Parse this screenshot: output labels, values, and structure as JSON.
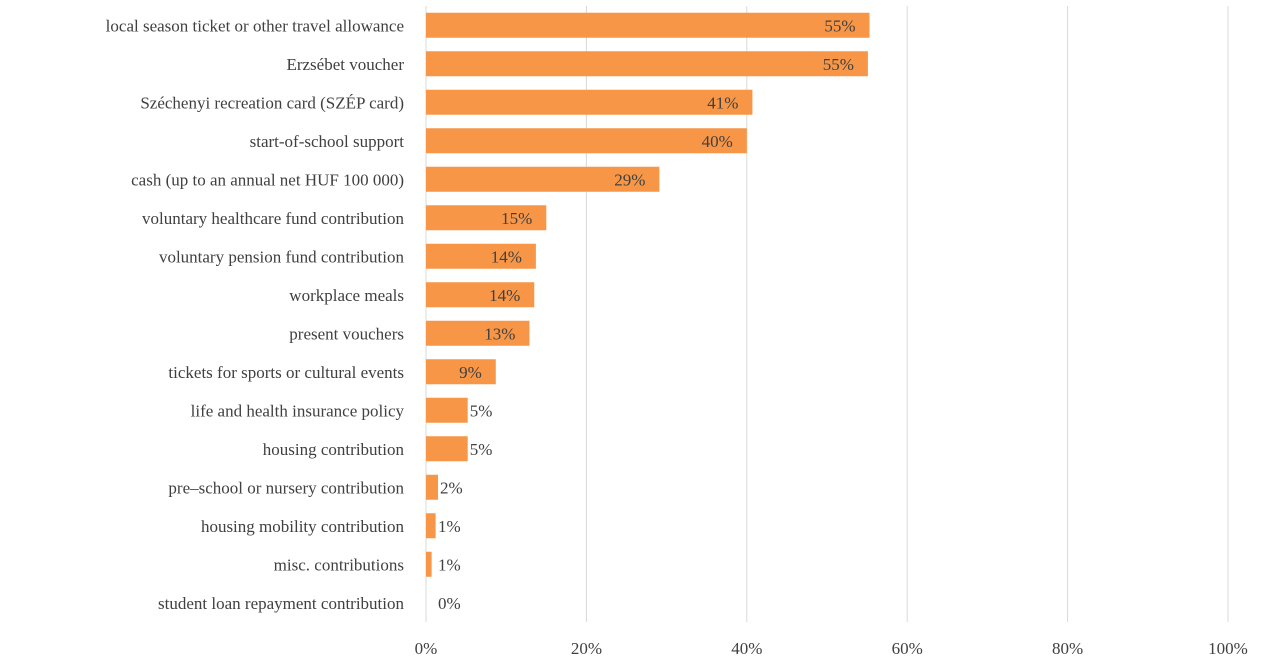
{
  "chart_data": {
    "type": "bar",
    "orientation": "horizontal",
    "categories": [
      "local season ticket or other travel allowance",
      "Erzsébet voucher",
      "Széchenyi recreation card (SZÉP card)",
      "start-of-school support",
      "cash (up to an annual net HUF 100 000)",
      "voluntary healthcare fund contribution",
      "voluntary pension fund contribution",
      "workplace meals",
      "present vouchers",
      "tickets for sports or cultural events",
      "life and health insurance policy",
      "housing contribution",
      "pre–school or nursery contribution",
      "housing mobility contribution",
      "misc. contributions",
      "student loan repayment contribution"
    ],
    "values": [
      55.3,
      55.1,
      40.7,
      40.0,
      29.1,
      15.0,
      13.7,
      13.5,
      12.9,
      8.7,
      5.2,
      5.2,
      1.5,
      1.2,
      0.7,
      0.0
    ],
    "value_labels": [
      "55%",
      "55%",
      "41%",
      "40%",
      "29%",
      "15%",
      "14%",
      "14%",
      "13%",
      "9%",
      "5%",
      "5%",
      "2%",
      "1%",
      "1%",
      "0%"
    ],
    "xlim": [
      0,
      100
    ],
    "xticks": [
      0,
      20,
      40,
      60,
      80,
      100
    ],
    "xtick_labels": [
      "0%",
      "20%",
      "40%",
      "60%",
      "80%",
      "100%"
    ],
    "grid": true,
    "bar_color": "#F79646",
    "title": "",
    "xlabel": "",
    "ylabel": ""
  }
}
